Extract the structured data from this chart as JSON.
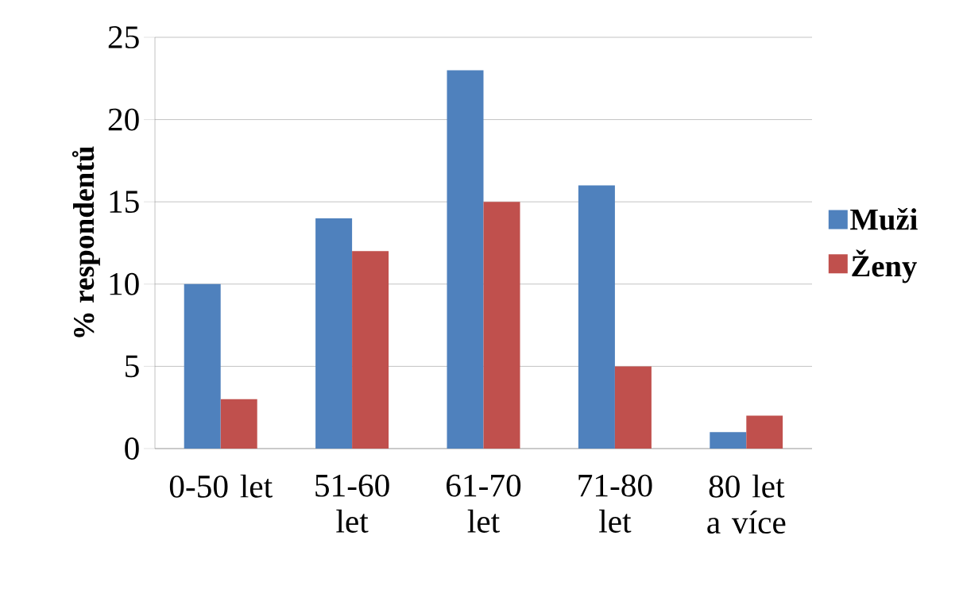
{
  "chart_data": {
    "type": "bar",
    "ylabel": "% respondentů",
    "categories": [
      "0-50 let",
      "51-60 let",
      "61-70 let",
      "71-80 let",
      "80 let a více"
    ],
    "series": [
      {
        "name": "Muži",
        "color": "#4f81bd",
        "values": [
          10,
          14,
          23,
          16,
          1
        ]
      },
      {
        "name": "Ženy",
        "color": "#c0504d",
        "values": [
          3,
          12,
          15,
          5,
          2
        ]
      }
    ],
    "ylim": [
      0,
      25
    ],
    "yticks": [
      0,
      5,
      10,
      15,
      20,
      25
    ],
    "grid": "y",
    "legend": "right"
  }
}
